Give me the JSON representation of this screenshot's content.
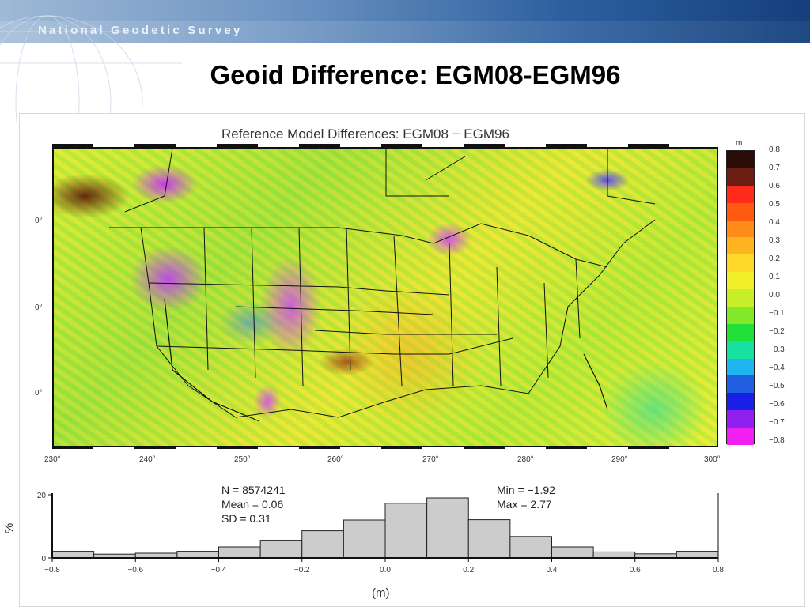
{
  "header": {
    "organization": "National Geodetic Survey"
  },
  "slide": {
    "title": "Geoid Difference: EGM08-EGM96"
  },
  "map": {
    "title": "Reference Model Differences: EGM08 − EGM96",
    "x_ticks": [
      "230°",
      "240°",
      "250°",
      "260°",
      "270°",
      "280°",
      "290°",
      "300°"
    ],
    "y_ticks": [
      "0°",
      "0°",
      "0°"
    ]
  },
  "colorbar": {
    "unit": "m",
    "labels": [
      "0.8",
      "0.7",
      "0.6",
      "0.5",
      "0.4",
      "0.3",
      "0.2",
      "0.1",
      "0.0",
      "−0.1",
      "−0.2",
      "−0.3",
      "−0.4",
      "−0.5",
      "−0.6",
      "−0.7",
      "−0.8"
    ],
    "colors": [
      "#2a0c06",
      "#6b1d12",
      "#ff2a1a",
      "#ff5a10",
      "#ff8c18",
      "#ffb320",
      "#ffd82a",
      "#f2f02a",
      "#c8f02a",
      "#84e82a",
      "#22e03a",
      "#18e0a0",
      "#20b4f0",
      "#2060e0",
      "#1820e8",
      "#9020f0",
      "#f020f0"
    ]
  },
  "histogram": {
    "stats_left": [
      "N =  8574241",
      "Mean = 0.06",
      "SD = 0.31"
    ],
    "stats_right": [
      "Min = −1.92",
      "Max = 2.77"
    ],
    "y_axis_label": "%",
    "x_axis_label": "(m)"
  },
  "chart_data": {
    "type": "bar",
    "xlabel": "(m)",
    "ylabel": "%",
    "ylim": [
      0,
      20
    ],
    "y_ticks": [
      "0",
      "20"
    ],
    "x_ticks": [
      "−0.8",
      "−0.6",
      "−0.4",
      "−0.2",
      "0.0",
      "0.2",
      "0.4",
      "0.6",
      "0.8"
    ],
    "bin_edges": [
      -0.8,
      -0.7,
      -0.6,
      -0.5,
      -0.4,
      -0.3,
      -0.2,
      -0.1,
      0.0,
      0.1,
      0.2,
      0.3,
      0.4,
      0.5,
      0.6,
      0.7,
      0.8
    ],
    "values": [
      2.1,
      1.2,
      1.5,
      2.1,
      3.5,
      5.6,
      8.6,
      12.0,
      17.3,
      19.0,
      12.1,
      6.8,
      3.5,
      1.9,
      1.3,
      2.1
    ],
    "bar_color": "#cccccc"
  }
}
